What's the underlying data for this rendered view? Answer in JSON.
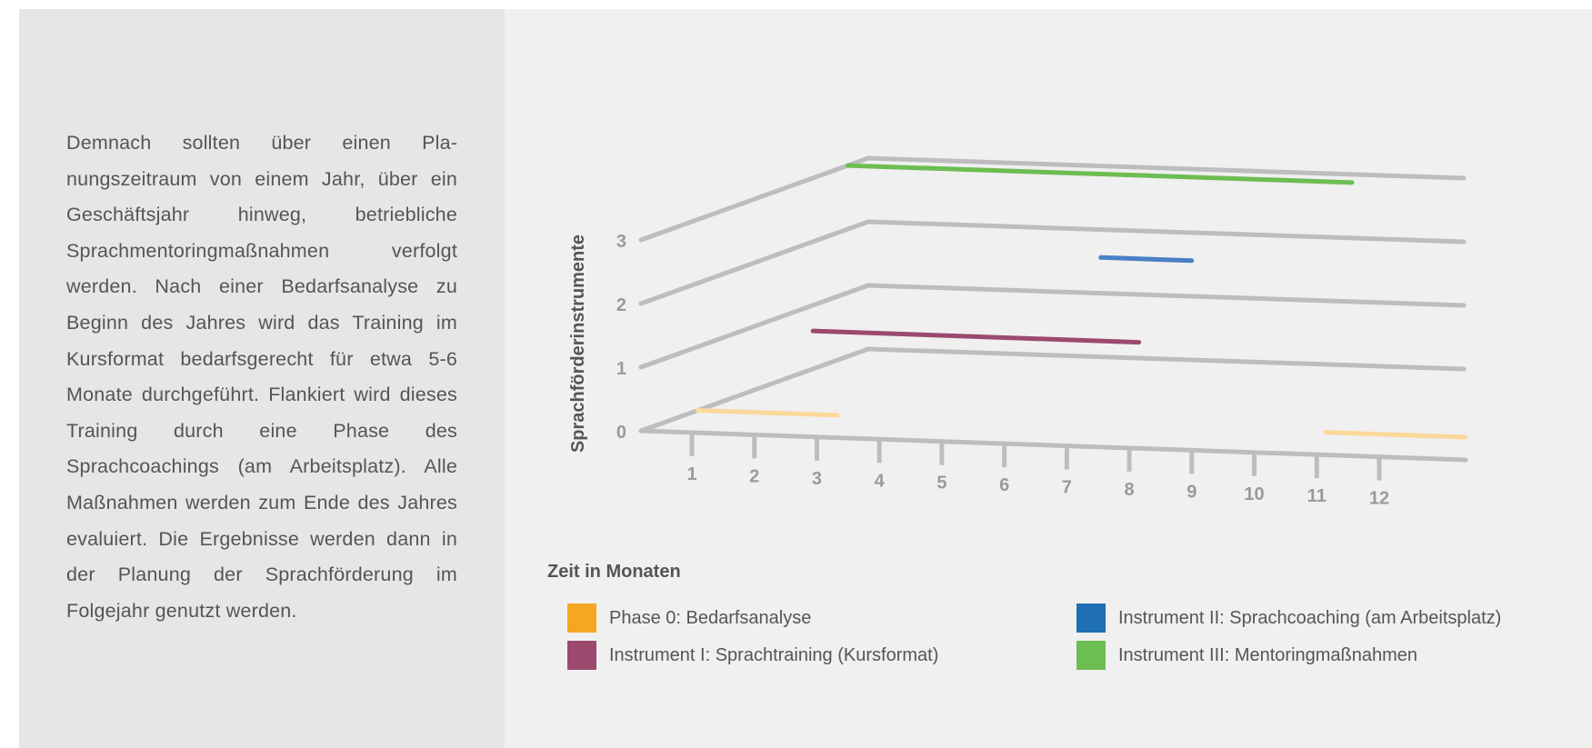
{
  "side_text": "Demnach sollten über einen Pla­nungszeitraum von einem Jahr, über ein Geschäftsjahr hinweg, betrieb­liche Sprachmentoringmaßnahmen verfolgt werden. Nach einer Bedarfs­analyse zu Beginn des Jahres wird das Training im Kursformat bedarfs­gerecht für etwa 5-6 Monate durch­geführt. Flankiert wird dieses Training durch eine Phase des Sprachcoachings (am Arbeitsplatz). Alle Maßnahmen werden zum Ende des Jahres evalu­iert. Die Ergebnisse werden dann in der Planung der Sprachförderung im Folgejahr genutzt werden.",
  "chart_data": {
    "type": "line",
    "title": "",
    "ylabel": "Sprachförderinstrumente",
    "xlabel": "Zeit in Monaten",
    "x_ticks": [
      "1",
      "2",
      "3",
      "4",
      "5",
      "6",
      "7",
      "8",
      "9",
      "10",
      "11",
      "12"
    ],
    "y_ticks": [
      "0",
      "1",
      "2",
      "3"
    ],
    "xlim": [
      1,
      12
    ],
    "ylim": [
      0,
      3
    ],
    "grid": true,
    "legend_position": "bottom",
    "series": [
      {
        "name": "Phase 0: Bedarfsanalyse",
        "color": "#f5a623",
        "line_color": "#fcd89a",
        "level": 0,
        "segments": [
          [
            1,
            3
          ],
          [
            10,
            12
          ]
        ]
      },
      {
        "name": "Instrument I: Sprachtraining (Kursformat)",
        "color": "#9b4a6e",
        "line_color": "#9b4a6e",
        "level": 1,
        "segments": [
          [
            2,
            7
          ]
        ]
      },
      {
        "name": "Instrument II: Sprachcoaching (am Arbeitsplatz)",
        "color": "#1f6fb5",
        "line_color": "#4a7fc8",
        "level": 2,
        "segments": [
          [
            6,
            7.5
          ]
        ]
      },
      {
        "name": "Instrument III: Mentoringmaßnahmen",
        "color": "#6cbd52",
        "line_color": "#6cbd52",
        "level": 3,
        "segments": [
          [
            1,
            10
          ]
        ]
      }
    ]
  },
  "colors": {
    "axis": "#bdbdc0",
    "text": "#555557",
    "tick_text": "#9a9a9c",
    "side_background": "#e6e6e7",
    "chart_background": "#f0f0f0"
  }
}
